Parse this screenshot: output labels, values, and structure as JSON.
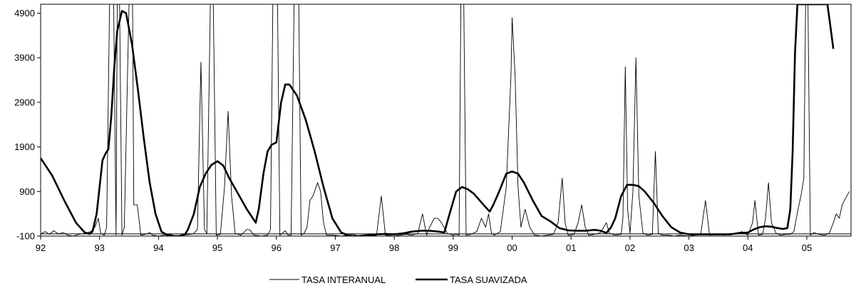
{
  "chart_data": {
    "type": "line",
    "title": "",
    "xlabel": "",
    "ylabel": "",
    "xlim": [
      92,
      105.75
    ],
    "ylim": [
      -100,
      5100
    ],
    "x_ticks": [
      "92",
      "93",
      "94",
      "95",
      "96",
      "97",
      "98",
      "99",
      "00",
      "01",
      "02",
      "03",
      "04",
      "05"
    ],
    "y_ticks": [
      "-100",
      "900",
      "1900",
      "2900",
      "3900",
      "4900"
    ],
    "grid": false,
    "legend_position": "bottom",
    "reference_lines": [
      {
        "axis": "y",
        "value": -100
      },
      {
        "axis": "y",
        "value": -50
      }
    ],
    "colors": {
      "interanual": "#000000",
      "suavizada": "#000000"
    },
    "series": [
      {
        "name": "TASA INTERANUAL",
        "style": "thin",
        "points": [
          [
            92.0,
            -50
          ],
          [
            92.08,
            0
          ],
          [
            92.15,
            -60
          ],
          [
            92.22,
            20
          ],
          [
            92.3,
            -50
          ],
          [
            92.38,
            -20
          ],
          [
            92.46,
            -80
          ],
          [
            92.55,
            -100
          ],
          [
            92.65,
            -60
          ],
          [
            92.75,
            -40
          ],
          [
            92.85,
            0
          ],
          [
            92.92,
            100
          ],
          [
            92.98,
            300
          ],
          [
            93.02,
            -40
          ],
          [
            93.08,
            -80
          ],
          [
            93.12,
            100
          ],
          [
            93.17,
            5100
          ],
          [
            93.24,
            5100
          ],
          [
            93.28,
            -80
          ],
          [
            93.3,
            5100
          ],
          [
            93.34,
            5100
          ],
          [
            93.38,
            -80
          ],
          [
            93.42,
            100
          ],
          [
            93.5,
            5100
          ],
          [
            93.56,
            5100
          ],
          [
            93.58,
            600
          ],
          [
            93.64,
            600
          ],
          [
            93.7,
            -80
          ],
          [
            93.78,
            -60
          ],
          [
            93.85,
            -20
          ],
          [
            93.9,
            -80
          ],
          [
            94.0,
            -100
          ],
          [
            94.1,
            -80
          ],
          [
            94.2,
            -60
          ],
          [
            94.3,
            -100
          ],
          [
            94.4,
            -80
          ],
          [
            94.55,
            -60
          ],
          [
            94.6,
            -40
          ],
          [
            94.66,
            50
          ],
          [
            94.72,
            3800
          ],
          [
            94.78,
            50
          ],
          [
            94.82,
            -40
          ],
          [
            94.88,
            5100
          ],
          [
            94.93,
            5100
          ],
          [
            94.98,
            -80
          ],
          [
            95.05,
            -60
          ],
          [
            95.12,
            1000
          ],
          [
            95.18,
            2700
          ],
          [
            95.24,
            800
          ],
          [
            95.3,
            -40
          ],
          [
            95.4,
            -80
          ],
          [
            95.5,
            50
          ],
          [
            95.55,
            40
          ],
          [
            95.62,
            -80
          ],
          [
            95.75,
            -100
          ],
          [
            95.85,
            -80
          ],
          [
            95.9,
            50
          ],
          [
            95.94,
            5100
          ],
          [
            96.02,
            5100
          ],
          [
            96.06,
            -80
          ],
          [
            96.1,
            -40
          ],
          [
            96.15,
            20
          ],
          [
            96.2,
            -80
          ],
          [
            96.25,
            -80
          ],
          [
            96.3,
            5100
          ],
          [
            96.38,
            5100
          ],
          [
            96.42,
            -80
          ],
          [
            96.47,
            -40
          ],
          [
            96.52,
            100
          ],
          [
            96.57,
            700
          ],
          [
            96.62,
            800
          ],
          [
            96.7,
            1100
          ],
          [
            96.75,
            900
          ],
          [
            96.8,
            200
          ],
          [
            96.85,
            -80
          ],
          [
            96.95,
            -80
          ],
          [
            97.1,
            -100
          ],
          [
            97.2,
            -80
          ],
          [
            97.3,
            -60
          ],
          [
            97.4,
            -100
          ],
          [
            97.5,
            -80
          ],
          [
            97.6,
            -100
          ],
          [
            97.7,
            -80
          ],
          [
            97.78,
            800
          ],
          [
            97.85,
            -80
          ],
          [
            98.0,
            -100
          ],
          [
            98.1,
            -80
          ],
          [
            98.2,
            -60
          ],
          [
            98.3,
            -80
          ],
          [
            98.4,
            -40
          ],
          [
            98.48,
            400
          ],
          [
            98.55,
            -80
          ],
          [
            98.6,
            100
          ],
          [
            98.68,
            300
          ],
          [
            98.74,
            300
          ],
          [
            98.8,
            200
          ],
          [
            98.9,
            -40
          ],
          [
            99.0,
            -80
          ],
          [
            99.05,
            -60
          ],
          [
            99.1,
            -80
          ],
          [
            99.13,
            5100
          ],
          [
            99.18,
            5100
          ],
          [
            99.22,
            -80
          ],
          [
            99.3,
            -60
          ],
          [
            99.4,
            0
          ],
          [
            99.48,
            300
          ],
          [
            99.55,
            100
          ],
          [
            99.6,
            400
          ],
          [
            99.65,
            -40
          ],
          [
            99.7,
            -80
          ],
          [
            99.8,
            0
          ],
          [
            99.9,
            1000
          ],
          [
            99.98,
            3500
          ],
          [
            100.0,
            4800
          ],
          [
            100.05,
            3500
          ],
          [
            100.1,
            1000
          ],
          [
            100.15,
            100
          ],
          [
            100.22,
            500
          ],
          [
            100.3,
            100
          ],
          [
            100.38,
            -80
          ],
          [
            100.5,
            -100
          ],
          [
            100.6,
            -80
          ],
          [
            100.7,
            -60
          ],
          [
            100.78,
            200
          ],
          [
            100.85,
            1200
          ],
          [
            100.9,
            200
          ],
          [
            100.95,
            -80
          ],
          [
            101.05,
            -60
          ],
          [
            101.12,
            200
          ],
          [
            101.18,
            600
          ],
          [
            101.24,
            100
          ],
          [
            101.3,
            -80
          ],
          [
            101.4,
            -60
          ],
          [
            101.5,
            -20
          ],
          [
            101.6,
            200
          ],
          [
            101.65,
            -40
          ],
          [
            101.75,
            -80
          ],
          [
            101.85,
            -60
          ],
          [
            101.88,
            300
          ],
          [
            101.92,
            3700
          ],
          [
            101.96,
            500
          ],
          [
            102.0,
            -40
          ],
          [
            102.05,
            900
          ],
          [
            102.1,
            3900
          ],
          [
            102.15,
            800
          ],
          [
            102.22,
            -40
          ],
          [
            102.3,
            -80
          ],
          [
            102.38,
            -60
          ],
          [
            102.43,
            1800
          ],
          [
            102.48,
            -40
          ],
          [
            102.55,
            -80
          ],
          [
            102.65,
            -80
          ],
          [
            102.75,
            -100
          ],
          [
            102.85,
            -80
          ],
          [
            103.0,
            -100
          ],
          [
            103.1,
            -80
          ],
          [
            103.2,
            -60
          ],
          [
            103.28,
            700
          ],
          [
            103.35,
            -80
          ],
          [
            103.5,
            -60
          ],
          [
            103.6,
            -80
          ],
          [
            103.7,
            -40
          ],
          [
            103.8,
            -60
          ],
          [
            103.9,
            0
          ],
          [
            104.0,
            -80
          ],
          [
            104.08,
            200
          ],
          [
            104.12,
            700
          ],
          [
            104.18,
            -80
          ],
          [
            104.25,
            -60
          ],
          [
            104.3,
            300
          ],
          [
            104.35,
            1100
          ],
          [
            104.4,
            200
          ],
          [
            104.48,
            -40
          ],
          [
            104.55,
            -80
          ],
          [
            104.65,
            -60
          ],
          [
            104.72,
            -60
          ],
          [
            104.78,
            0
          ],
          [
            104.85,
            500
          ],
          [
            104.9,
            800
          ],
          [
            104.95,
            1200
          ],
          [
            104.98,
            5100
          ],
          [
            105.02,
            5100
          ],
          [
            105.06,
            -80
          ],
          [
            105.12,
            -20
          ],
          [
            105.2,
            -60
          ],
          [
            105.3,
            -80
          ],
          [
            105.38,
            -40
          ],
          [
            105.45,
            200
          ],
          [
            105.5,
            400
          ],
          [
            105.55,
            300
          ],
          [
            105.6,
            600
          ],
          [
            105.68,
            800
          ],
          [
            105.72,
            900
          ]
        ]
      },
      {
        "name": "TASA SUAVIZADA",
        "style": "thick",
        "points": [
          [
            92.0,
            1650
          ],
          [
            92.2,
            1250
          ],
          [
            92.4,
            700
          ],
          [
            92.6,
            200
          ],
          [
            92.75,
            -20
          ],
          [
            92.83,
            -50
          ],
          [
            92.88,
            0
          ],
          [
            92.95,
            400
          ],
          [
            93.0,
            1000
          ],
          [
            93.05,
            1600
          ],
          [
            93.1,
            1750
          ],
          [
            93.15,
            1850
          ],
          [
            93.2,
            2600
          ],
          [
            93.25,
            3700
          ],
          [
            93.3,
            4500
          ],
          [
            93.38,
            4950
          ],
          [
            93.45,
            4900
          ],
          [
            93.55,
            4200
          ],
          [
            93.65,
            3200
          ],
          [
            93.75,
            2100
          ],
          [
            93.85,
            1100
          ],
          [
            93.95,
            400
          ],
          [
            94.05,
            0
          ],
          [
            94.15,
            -80
          ],
          [
            94.25,
            -100
          ],
          [
            94.35,
            -100
          ],
          [
            94.45,
            -60
          ],
          [
            94.5,
            50
          ],
          [
            94.6,
            400
          ],
          [
            94.7,
            1000
          ],
          [
            94.8,
            1300
          ],
          [
            94.9,
            1500
          ],
          [
            95.0,
            1580
          ],
          [
            95.1,
            1480
          ],
          [
            95.2,
            1200
          ],
          [
            95.35,
            850
          ],
          [
            95.5,
            500
          ],
          [
            95.6,
            300
          ],
          [
            95.65,
            200
          ],
          [
            95.7,
            500
          ],
          [
            95.78,
            1300
          ],
          [
            95.85,
            1800
          ],
          [
            95.92,
            1950
          ],
          [
            96.0,
            2000
          ],
          [
            96.08,
            2900
          ],
          [
            96.15,
            3300
          ],
          [
            96.22,
            3300
          ],
          [
            96.35,
            3050
          ],
          [
            96.5,
            2500
          ],
          [
            96.65,
            1800
          ],
          [
            96.8,
            1000
          ],
          [
            96.95,
            300
          ],
          [
            97.1,
            -20
          ],
          [
            97.25,
            -100
          ],
          [
            97.4,
            -100
          ],
          [
            97.55,
            -80
          ],
          [
            97.7,
            -60
          ],
          [
            97.85,
            -50
          ],
          [
            98.0,
            -60
          ],
          [
            98.15,
            -40
          ],
          [
            98.3,
            0
          ],
          [
            98.45,
            20
          ],
          [
            98.6,
            20
          ],
          [
            98.75,
            0
          ],
          [
            98.85,
            -20
          ],
          [
            98.95,
            450
          ],
          [
            99.05,
            900
          ],
          [
            99.15,
            1000
          ],
          [
            99.25,
            950
          ],
          [
            99.35,
            850
          ],
          [
            99.45,
            700
          ],
          [
            99.55,
            550
          ],
          [
            99.62,
            450
          ],
          [
            99.68,
            600
          ],
          [
            99.78,
            900
          ],
          [
            99.9,
            1300
          ],
          [
            100.0,
            1350
          ],
          [
            100.1,
            1300
          ],
          [
            100.2,
            1100
          ],
          [
            100.35,
            700
          ],
          [
            100.5,
            350
          ],
          [
            100.65,
            230
          ],
          [
            100.8,
            80
          ],
          [
            100.95,
            30
          ],
          [
            101.1,
            20
          ],
          [
            101.25,
            20
          ],
          [
            101.4,
            40
          ],
          [
            101.5,
            20
          ],
          [
            101.6,
            -30
          ],
          [
            101.68,
            100
          ],
          [
            101.75,
            300
          ],
          [
            101.85,
            800
          ],
          [
            101.95,
            1050
          ],
          [
            102.05,
            1050
          ],
          [
            102.15,
            1020
          ],
          [
            102.25,
            900
          ],
          [
            102.4,
            650
          ],
          [
            102.55,
            350
          ],
          [
            102.7,
            100
          ],
          [
            102.85,
            -20
          ],
          [
            103.0,
            -60
          ],
          [
            103.2,
            -60
          ],
          [
            103.4,
            -60
          ],
          [
            103.55,
            -60
          ],
          [
            103.7,
            -60
          ],
          [
            103.85,
            -30
          ],
          [
            104.0,
            -20
          ],
          [
            104.1,
            50
          ],
          [
            104.2,
            100
          ],
          [
            104.3,
            120
          ],
          [
            104.4,
            110
          ],
          [
            104.5,
            80
          ],
          [
            104.6,
            60
          ],
          [
            104.67,
            80
          ],
          [
            104.72,
            500
          ],
          [
            104.76,
            1800
          ],
          [
            104.8,
            4000
          ],
          [
            104.84,
            5100
          ],
          [
            105.35,
            5100
          ],
          [
            105.4,
            4600
          ],
          [
            105.45,
            4100
          ]
        ]
      }
    ]
  }
}
